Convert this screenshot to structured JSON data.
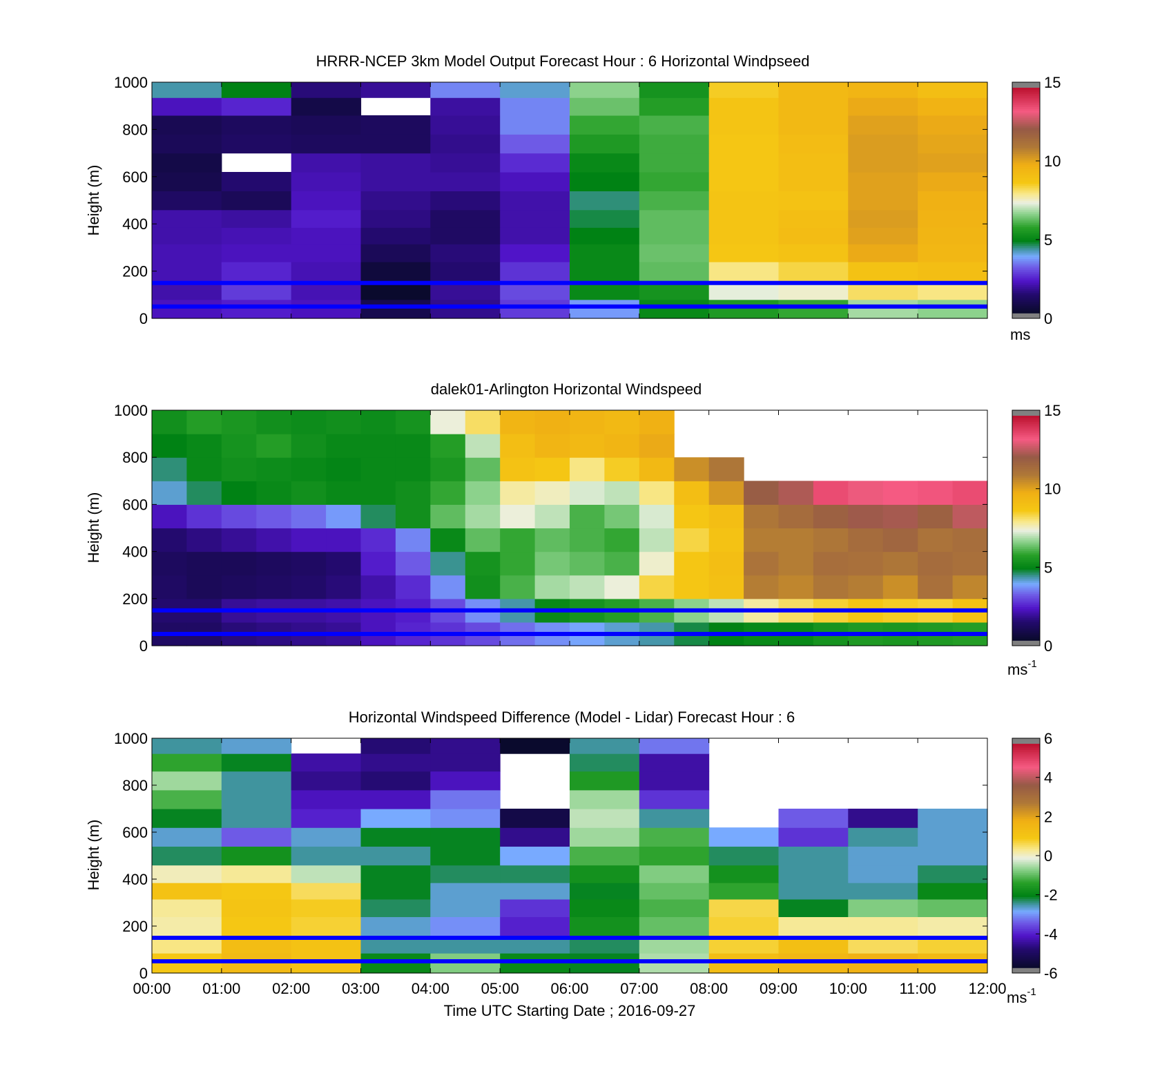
{
  "figure": {
    "xlabel": "Time UTC  Starting Date ; 2016-09-27",
    "x_tick_labels": [
      "00:00",
      "01:00",
      "02:00",
      "03:00",
      "04:00",
      "05:00",
      "06:00",
      "07:00",
      "08:00",
      "09:00",
      "10:00",
      "11:00",
      "12:00"
    ],
    "overlay_line_heights_m": [
      50,
      150
    ],
    "overlay_line_color": "#0000ff"
  },
  "chart_data": [
    {
      "type": "heatmap",
      "title": "HRRR-NCEP 3km Model Output   Forecast Hour : 6 Horizontal Windpseed",
      "ylabel": "Height (m)",
      "ylim": [
        0,
        1000
      ],
      "y_ticks": [
        0,
        200,
        400,
        600,
        800,
        1000
      ],
      "colorbar": {
        "min": 0,
        "max": 15,
        "ticks": [
          0,
          5,
          10,
          15
        ],
        "unit": "ms",
        "unit_sup": ""
      },
      "x_hours": [
        0,
        1,
        2,
        3,
        4,
        5,
        6,
        7,
        8,
        9,
        10,
        11
      ],
      "y_levels_m": [
        40,
        120,
        200,
        280,
        350,
        420,
        500,
        580,
        660,
        740,
        820,
        900,
        970
      ],
      "values": [
        [
          2.0,
          2.2,
          2.0,
          0.6,
          1.5,
          2.6,
          3.6,
          5.0,
          5.5,
          5.8,
          6.8,
          6.6
        ],
        [
          1.8,
          2.6,
          1.9,
          0.0,
          1.6,
          2.8,
          5.0,
          5.3,
          7.3,
          7.5,
          8.2,
          8.0
        ],
        [
          1.9,
          2.3,
          1.9,
          0.3,
          1.2,
          2.5,
          5.0,
          6.2,
          8.0,
          8.4,
          9.0,
          9.2
        ],
        [
          1.9,
          2.0,
          2.0,
          0.8,
          1.3,
          2.1,
          5.0,
          6.3,
          8.8,
          9.0,
          10.0,
          9.5
        ],
        [
          1.8,
          1.9,
          2.0,
          1.2,
          1.0,
          1.8,
          4.8,
          6.2,
          8.9,
          9.3,
          10.2,
          9.6
        ],
        [
          1.8,
          1.7,
          2.2,
          1.4,
          1.0,
          1.8,
          4.6,
          6.2,
          8.9,
          9.2,
          10.3,
          9.7
        ],
        [
          1.0,
          0.8,
          2.0,
          1.5,
          1.3,
          1.8,
          4.4,
          6.0,
          8.9,
          9.0,
          10.2,
          9.8
        ],
        [
          0.6,
          1.2,
          1.9,
          1.7,
          1.7,
          2.0,
          4.8,
          5.8,
          8.8,
          9.2,
          10.2,
          10.0
        ],
        [
          0.5,
          null,
          1.8,
          1.7,
          1.6,
          2.4,
          5.0,
          5.9,
          8.8,
          9.2,
          10.3,
          10.2
        ],
        [
          0.8,
          1.0,
          0.9,
          0.9,
          1.5,
          3.0,
          5.5,
          5.9,
          8.8,
          9.3,
          10.3,
          10.1
        ],
        [
          0.7,
          0.9,
          0.8,
          0.9,
          1.6,
          3.4,
          5.8,
          6.0,
          8.9,
          9.4,
          10.2,
          10.0
        ],
        [
          2.0,
          2.3,
          0.5,
          null,
          1.7,
          3.4,
          6.3,
          5.6,
          8.9,
          9.4,
          10.0,
          9.7
        ],
        [
          4.2,
          4.8,
          1.3,
          1.6,
          3.4,
          4.0,
          6.6,
          5.3,
          8.6,
          9.4,
          9.6,
          9.2
        ]
      ]
    },
    {
      "type": "heatmap",
      "title": "dalek01-Arlington  Horizontal Windspeed",
      "ylabel": "Height (m)",
      "ylim": [
        0,
        1000
      ],
      "y_ticks": [
        0,
        200,
        400,
        600,
        800,
        1000
      ],
      "colorbar": {
        "min": 0,
        "max": 15,
        "ticks": [
          0,
          5,
          10,
          15
        ],
        "unit": "ms",
        "unit_sup": "-1"
      },
      "x_hours": [
        0,
        0.5,
        1,
        1.5,
        2,
        2.5,
        3,
        3.5,
        4,
        4.5,
        5,
        5.5,
        6,
        6.5,
        7,
        7.5,
        8,
        8.5,
        9,
        9.5,
        10,
        10.5,
        11,
        11.5
      ],
      "y_levels_m": [
        50,
        150,
        250,
        350,
        450,
        550,
        650,
        750,
        850,
        950
      ],
      "values": [
        [
          1.0,
          1.0,
          1.3,
          1.4,
          1.5,
          1.6,
          2.0,
          2.3,
          2.5,
          2.8,
          3.2,
          3.5,
          3.7,
          4.0,
          4.2,
          4.6,
          4.8,
          5.0,
          5.0,
          5.3,
          5.5,
          5.4,
          5.5,
          5.6
        ],
        [
          1.2,
          1.2,
          1.6,
          1.7,
          1.7,
          1.8,
          2.0,
          2.2,
          2.8,
          3.5,
          4.2,
          5.0,
          5.3,
          5.6,
          6.0,
          6.6,
          7.0,
          7.8,
          8.2,
          8.5,
          8.8,
          8.6,
          8.5,
          9.0
        ],
        [
          1.0,
          0.8,
          0.9,
          1.0,
          1.1,
          1.3,
          1.8,
          2.4,
          3.5,
          5.2,
          6.0,
          6.8,
          7.0,
          7.4,
          8.4,
          8.8,
          9.1,
          11.0,
          10.8,
          11.2,
          11.0,
          10.6,
          11.4,
          10.8
        ],
        [
          0.9,
          0.8,
          0.8,
          0.9,
          1.0,
          1.2,
          2.2,
          3.0,
          4.3,
          5.3,
          5.8,
          6.4,
          6.2,
          6.0,
          7.5,
          8.8,
          9.2,
          11.3,
          11.0,
          11.5,
          11.4,
          11.2,
          11.6,
          11.4
        ],
        [
          1.2,
          1.4,
          1.6,
          1.8,
          2.0,
          2.0,
          2.4,
          3.4,
          5.0,
          6.2,
          5.8,
          6.2,
          6.0,
          5.8,
          7.0,
          8.4,
          9.0,
          11.0,
          11.0,
          11.2,
          11.6,
          11.8,
          11.3,
          11.5
        ],
        [
          2.0,
          2.5,
          2.8,
          3.0,
          3.2,
          3.6,
          4.5,
          5.2,
          6.2,
          6.8,
          7.4,
          7.0,
          6.0,
          6.4,
          7.2,
          8.8,
          9.2,
          11.2,
          11.6,
          12.0,
          12.4,
          12.5,
          12.0,
          12.8
        ],
        [
          4.0,
          4.5,
          4.8,
          5.0,
          5.2,
          5.0,
          5.0,
          5.2,
          5.8,
          6.6,
          7.8,
          7.6,
          7.2,
          7.0,
          8.0,
          9.2,
          10.4,
          12.2,
          12.6,
          13.8,
          13.4,
          13.5,
          13.6,
          13.8
        ],
        [
          4.4,
          5.0,
          5.2,
          5.1,
          5.0,
          4.9,
          5.0,
          5.0,
          5.4,
          6.2,
          9.0,
          8.8,
          8.0,
          8.6,
          9.4,
          10.6,
          11.2,
          null,
          null,
          null,
          null,
          null,
          null,
          null
        ],
        [
          4.8,
          5.0,
          5.3,
          5.6,
          5.2,
          5.0,
          5.0,
          5.0,
          5.6,
          7.0,
          9.2,
          9.6,
          9.4,
          9.6,
          10.0,
          null,
          null,
          null,
          null,
          null,
          null,
          null,
          null,
          null
        ],
        [
          5.2,
          5.6,
          5.4,
          5.2,
          5.1,
          5.2,
          5.1,
          5.3,
          7.4,
          8.2,
          9.6,
          9.8,
          9.6,
          9.4,
          9.8,
          null,
          null,
          null,
          null,
          null,
          null,
          null,
          null,
          null
        ]
      ]
    },
    {
      "type": "heatmap",
      "title": "Horizontal Windspeed Difference (Model - Lidar) Forecast Hour : 6",
      "ylabel": "Height (m)",
      "ylim": [
        0,
        1000
      ],
      "y_ticks": [
        0,
        200,
        400,
        600,
        800,
        1000
      ],
      "colorbar": {
        "min": -6,
        "max": 6,
        "ticks": [
          -6,
          -4,
          -2,
          0,
          2,
          4,
          6
        ],
        "unit": "ms",
        "unit_sup": "-1"
      },
      "x_hours": [
        0,
        1,
        2,
        3,
        4,
        5,
        6,
        7,
        8,
        9,
        10,
        11
      ],
      "y_levels_m": [
        50,
        120,
        200,
        280,
        350,
        420,
        500,
        580,
        660,
        740,
        820,
        900,
        970
      ],
      "values": [
        [
          1.0,
          1.5,
          1.2,
          -2.0,
          -0.8,
          -2.0,
          -2.2,
          -0.5,
          1.4,
          1.6,
          1.8,
          1.5
        ],
        [
          0.4,
          1.4,
          1.2,
          -2.6,
          -2.6,
          -2.6,
          -2.4,
          -0.6,
          0.8,
          1.3,
          0.6,
          0.8
        ],
        [
          0.2,
          1.0,
          0.8,
          -2.8,
          -3.2,
          -4.2,
          -1.8,
          -1.0,
          0.8,
          0.3,
          0.3,
          0.2
        ],
        [
          0.3,
          1.1,
          0.9,
          -2.4,
          -2.8,
          -4.0,
          -2.0,
          -1.2,
          0.7,
          -2.2,
          -0.8,
          -1.0
        ],
        [
          1.2,
          1.0,
          0.6,
          -2.2,
          -2.8,
          -2.8,
          -2.2,
          -1.0,
          -1.4,
          -2.6,
          -2.6,
          -2.0
        ],
        [
          0.1,
          0.3,
          -0.4,
          -2.2,
          -2.4,
          -2.4,
          -1.8,
          -0.8,
          -1.8,
          -2.6,
          -2.8,
          -2.4
        ],
        [
          -2.4,
          -1.8,
          -2.6,
          -2.6,
          -2.2,
          -3.0,
          -1.2,
          -1.4,
          -2.4,
          -2.6,
          -2.8,
          -2.8
        ],
        [
          -2.8,
          -3.6,
          -2.8,
          -2.2,
          -2.2,
          -4.8,
          -0.6,
          -1.2,
          -3.0,
          -4.0,
          -2.6,
          -2.8
        ],
        [
          -2.2,
          -2.6,
          -4.2,
          -3.0,
          -3.2,
          -5.6,
          -0.4,
          -2.6,
          null,
          -3.6,
          -4.8,
          -2.8
        ],
        [
          -1.2,
          -2.6,
          -4.4,
          -4.4,
          -3.4,
          null,
          -0.6,
          -4.0,
          null,
          null,
          null,
          null
        ],
        [
          -0.6,
          -2.6,
          -4.8,
          -5.0,
          -4.4,
          null,
          -1.6,
          -4.6,
          null,
          null,
          null,
          null
        ],
        [
          -1.4,
          -2.2,
          -4.6,
          -4.8,
          -4.8,
          null,
          -2.4,
          -4.6,
          null,
          null,
          null,
          null
        ],
        [
          -2.6,
          -2.8,
          null,
          -5.0,
          -4.8,
          -6.0,
          -2.6,
          -3.4,
          null,
          null,
          null,
          null
        ]
      ]
    }
  ]
}
